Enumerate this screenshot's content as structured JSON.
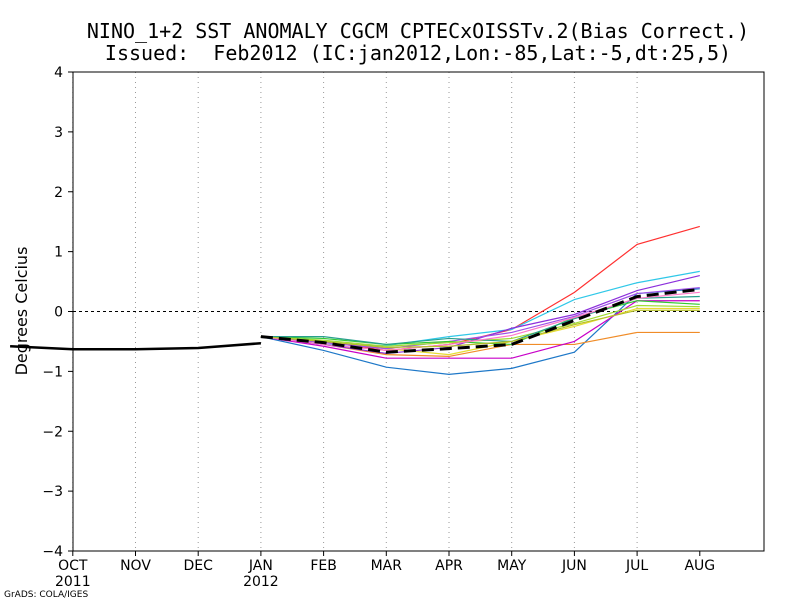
{
  "chart_data": {
    "type": "line",
    "title": "NINO_1+2 SST ANOMALY CGCM CPTECxOISSTv.2(Bias Correct.)",
    "subtitle": "Issued:  Feb2012 (IC:jan2012,Lon:-85,Lat:-5,dt:25,5)",
    "ylabel": "Degrees Celcius",
    "credit": "GrADS: COLA/IGES",
    "ylim": [
      -4,
      4
    ],
    "yticks": [
      "4",
      "3",
      "2",
      "1",
      "0",
      "−1",
      "−2",
      "−3",
      "−4"
    ],
    "ytick_values": [
      4,
      3,
      2,
      1,
      0,
      -1,
      -2,
      -3,
      -4
    ],
    "x_positions": [
      0,
      1,
      2,
      3,
      4,
      5,
      6,
      7,
      8,
      9,
      10,
      11
    ],
    "xlim": [
      0,
      11
    ],
    "xtick_labels": [
      {
        "x": 1,
        "label": "OCT",
        "year": "2011"
      },
      {
        "x": 2,
        "label": "NOV",
        "year": ""
      },
      {
        "x": 3,
        "label": "DEC",
        "year": ""
      },
      {
        "x": 4,
        "label": "JAN",
        "year": "2012"
      },
      {
        "x": 5,
        "label": "FEB",
        "year": ""
      },
      {
        "x": 6,
        "label": "MAR",
        "year": ""
      },
      {
        "x": 7,
        "label": "APR",
        "year": ""
      },
      {
        "x": 8,
        "label": "MAY",
        "year": ""
      },
      {
        "x": 9,
        "label": "JUN",
        "year": ""
      },
      {
        "x": 10,
        "label": "JUL",
        "year": ""
      },
      {
        "x": 11,
        "label": "AUG",
        "year": ""
      }
    ],
    "observed": {
      "name": "observed",
      "color": "#000000",
      "x": [
        0,
        1,
        2,
        3,
        4
      ],
      "values": [
        -0.58,
        -0.63,
        -0.63,
        -0.61,
        -0.53
      ]
    },
    "ensemble_mean": {
      "name": "ensemble mean",
      "color": "#000000",
      "x": [
        4,
        5,
        6,
        7,
        8,
        9,
        10,
        11
      ],
      "values": [
        -0.42,
        -0.52,
        -0.68,
        -0.62,
        -0.55,
        -0.15,
        0.25,
        0.37
      ]
    },
    "members": [
      {
        "name": "member-red",
        "color": "#ff3030",
        "values": [
          -0.42,
          -0.5,
          -0.65,
          -0.55,
          -0.3,
          0.32,
          1.12,
          1.42
        ]
      },
      {
        "name": "member-sky",
        "color": "#30c8e8",
        "values": [
          -0.42,
          -0.55,
          -0.57,
          -0.42,
          -0.3,
          0.2,
          0.48,
          0.67
        ]
      },
      {
        "name": "member-blue",
        "color": "#1e78c8",
        "values": [
          -0.42,
          -0.65,
          -0.93,
          -1.05,
          -0.95,
          -0.68,
          0.3,
          0.38
        ]
      },
      {
        "name": "member-orange",
        "color": "#f08c28",
        "values": [
          -0.42,
          -0.55,
          -0.72,
          -0.75,
          -0.55,
          -0.55,
          -0.35,
          -0.35
        ]
      },
      {
        "name": "member-yellow",
        "color": "#e6dc32",
        "values": [
          -0.42,
          -0.5,
          -0.62,
          -0.72,
          -0.5,
          -0.25,
          0.05,
          0.05
        ]
      },
      {
        "name": "member-magenta",
        "color": "#c800c8",
        "values": [
          -0.42,
          -0.58,
          -0.78,
          -0.78,
          -0.78,
          -0.5,
          0.18,
          0.18
        ]
      },
      {
        "name": "member-purple",
        "color": "#8c30dc",
        "values": [
          -0.42,
          -0.55,
          -0.7,
          -0.6,
          -0.28,
          -0.05,
          0.35,
          0.6
        ]
      },
      {
        "name": "member-violet",
        "color": "#a050e6",
        "values": [
          -0.42,
          -0.52,
          -0.62,
          -0.5,
          -0.35,
          -0.08,
          0.3,
          0.4
        ]
      },
      {
        "name": "member-green",
        "color": "#32c832",
        "values": [
          -0.42,
          -0.45,
          -0.55,
          -0.5,
          -0.55,
          -0.1,
          0.18,
          0.12
        ]
      },
      {
        "name": "member-lime",
        "color": "#a0dc32",
        "values": [
          -0.42,
          -0.48,
          -0.58,
          -0.52,
          -0.45,
          -0.2,
          0.1,
          0.08
        ]
      },
      {
        "name": "member-teal",
        "color": "#28a08c",
        "values": [
          -0.42,
          -0.42,
          -0.55,
          -0.45,
          -0.5,
          -0.12,
          0.22,
          0.25
        ]
      },
      {
        "name": "member-pink",
        "color": "#ff78c8",
        "values": [
          -0.42,
          -0.55,
          -0.65,
          -0.55,
          -0.4,
          -0.1,
          0.22,
          0.32
        ]
      },
      {
        "name": "member-olive",
        "color": "#b4be28",
        "values": [
          -0.42,
          -0.5,
          -0.6,
          -0.58,
          -0.5,
          -0.22,
          0.02,
          0.02
        ]
      }
    ]
  }
}
